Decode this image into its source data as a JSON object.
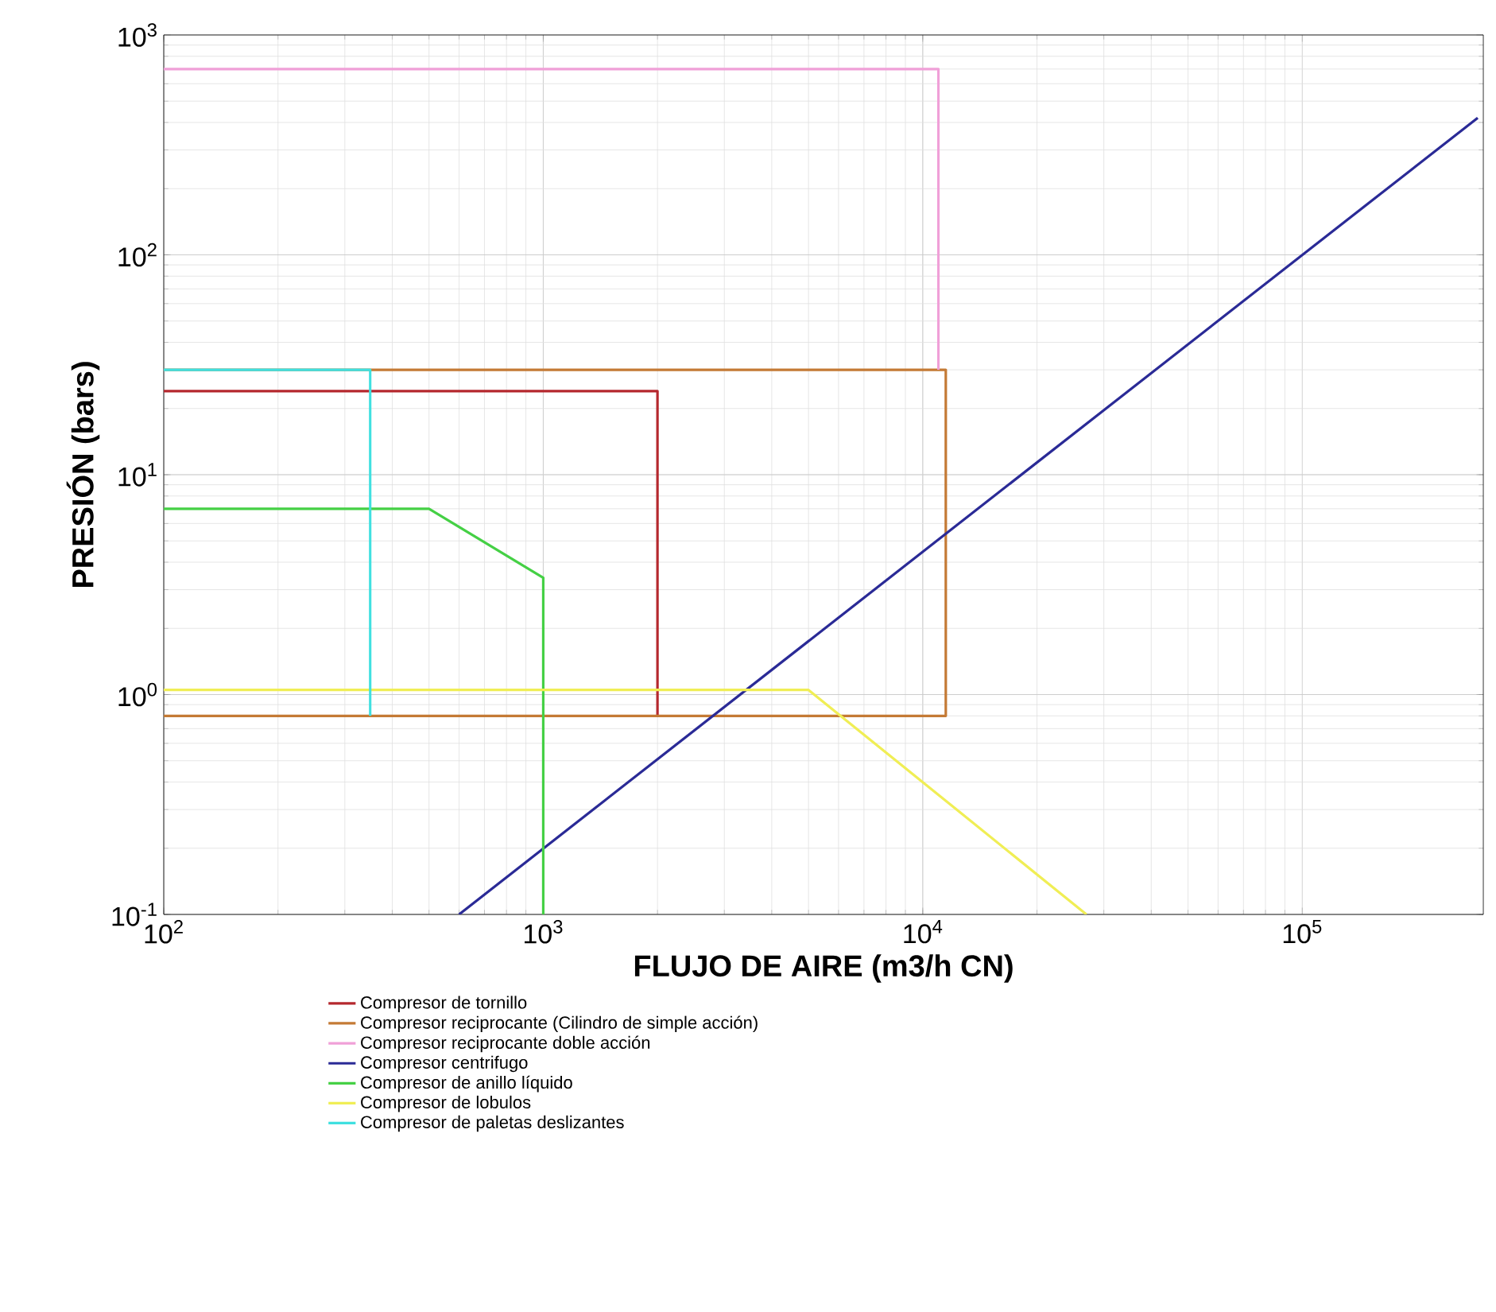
{
  "chart_data": {
    "type": "line",
    "xlabel": "FLUJO DE AIRE (m3/h CN)",
    "ylabel": "PRESIÓN (bars)",
    "log": "xy",
    "grid": true,
    "legend": "bottom",
    "xlim": [
      100,
      300000
    ],
    "ylim": [
      0.1,
      1000
    ],
    "xticks": [
      {
        "value": 100,
        "label": "10$^{2}$"
      },
      {
        "value": 1000,
        "label": "10$^{3}$"
      },
      {
        "value": 10000,
        "label": "10$^{4}$"
      },
      {
        "value": 100000,
        "label": "10$^{5}$"
      }
    ],
    "yticks": [
      {
        "value": 0.1,
        "label": "10$^{-1}$"
      },
      {
        "value": 1,
        "label": "10$^{0}$"
      },
      {
        "value": 10,
        "label": "10$^{1}$"
      },
      {
        "value": 100,
        "label": "10$^{2}$"
      },
      {
        "value": 1000,
        "label": "10$^{3}$"
      }
    ],
    "series": [
      {
        "name": "Compresor de tornillo",
        "color": "#b5282e",
        "x": [
          100,
          2000,
          2000
        ],
        "values": [
          24,
          24,
          0.8
        ]
      },
      {
        "name": "Compresor reciprocante (Cilindro de simple acción)",
        "color": "#c47a35",
        "x": [
          100,
          11500,
          11500,
          100
        ],
        "values": [
          30,
          30,
          0.8,
          0.8
        ]
      },
      {
        "name": "Compresor reciprocante doble acción",
        "color": "#f0a0d8",
        "x": [
          100,
          11000,
          11000
        ],
        "values": [
          700,
          700,
          30
        ]
      },
      {
        "name": "Compresor centrifugo",
        "color": "#2a2a96",
        "x": [
          600,
          290000
        ],
        "values": [
          0.1,
          420
        ]
      },
      {
        "name": "Compresor de anillo líquido",
        "color": "#45d045",
        "x": [
          100,
          500,
          1000,
          1000
        ],
        "values": [
          7,
          7,
          3.4,
          0.1
        ]
      },
      {
        "name": "Compresor de lobulos",
        "color": "#f0ee55",
        "x": [
          100,
          5000,
          27000
        ],
        "values": [
          1.05,
          1.05,
          0.1
        ]
      },
      {
        "name": "Compresor de paletas deslizantes",
        "color": "#40e0e0",
        "x": [
          100,
          350,
          350
        ],
        "values": [
          30,
          30,
          0.8
        ]
      }
    ]
  }
}
